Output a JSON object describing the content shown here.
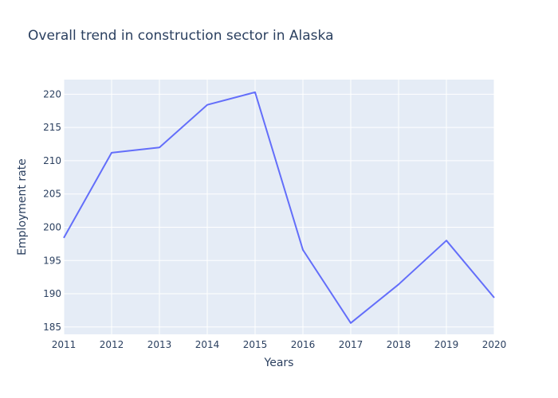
{
  "chart_data": {
    "type": "line",
    "title": "Overall trend in construction sector in Alaska",
    "xlabel": "Years",
    "ylabel": "Employment rate",
    "x": [
      2011,
      2012,
      2013,
      2014,
      2015,
      2016,
      2017,
      2018,
      2019,
      2020
    ],
    "series": [
      {
        "values": [
          198.4,
          211.2,
          212.0,
          218.4,
          220.3,
          196.6,
          185.6,
          191.4,
          198.0,
          189.4
        ]
      }
    ],
    "xlim": [
      2011,
      2020
    ],
    "ylim": [
      183.9,
      222.2
    ],
    "xticks": [
      "2011",
      "2012",
      "2013",
      "2014",
      "2015",
      "2016",
      "2017",
      "2018",
      "2019",
      "2020"
    ],
    "yticks": [
      "185",
      "190",
      "195",
      "200",
      "205",
      "210",
      "215",
      "220"
    ],
    "ytick_values": [
      185,
      190,
      195,
      200,
      205,
      210,
      215,
      220
    ],
    "grid": true,
    "colors": {
      "line": "#636efa",
      "plot_bg": "#e5ecf6",
      "grid": "#ffffff",
      "text": "#2a3f5f"
    }
  }
}
